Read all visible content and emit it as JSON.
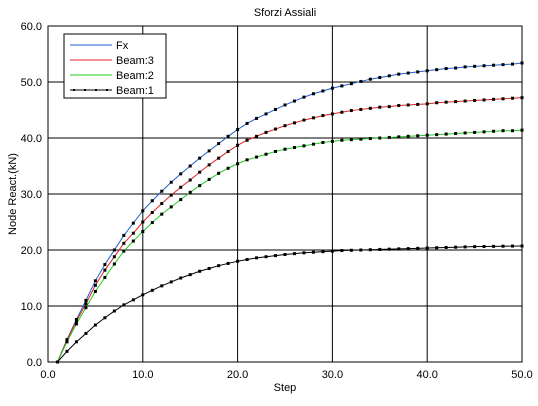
{
  "chart_data": {
    "type": "line",
    "title": "Sforzi Assiali",
    "xlabel": "Step",
    "ylabel": "Node React.(kN)",
    "xlim": [
      0,
      50
    ],
    "ylim": [
      0,
      60
    ],
    "x_ticks": [
      "0.0",
      "10.0",
      "20.0",
      "30.0",
      "40.0",
      "50.0"
    ],
    "y_ticks": [
      "0.0",
      "10.0",
      "20.0",
      "30.0",
      "40.0",
      "50.0",
      "60.0"
    ],
    "grid": true,
    "legend_position": "top-left",
    "x": [
      1,
      2,
      3,
      4,
      5,
      6,
      7,
      8,
      9,
      10,
      11,
      12,
      13,
      14,
      15,
      16,
      17,
      18,
      19,
      20,
      21,
      22,
      23,
      24,
      25,
      26,
      27,
      28,
      29,
      30,
      31,
      32,
      33,
      34,
      35,
      36,
      37,
      38,
      39,
      40,
      41,
      42,
      43,
      44,
      45,
      46,
      47,
      48,
      49,
      50
    ],
    "series": [
      {
        "name": "Fx",
        "color": "#1f5fd0",
        "values": [
          0.0,
          4.0,
          7.6,
          11.0,
          14.5,
          17.4,
          20.0,
          22.6,
          24.8,
          27.0,
          28.8,
          30.5,
          32.1,
          33.6,
          35.0,
          36.4,
          37.7,
          39.0,
          40.3,
          41.5,
          42.6,
          43.5,
          44.3,
          45.1,
          45.9,
          46.6,
          47.3,
          47.9,
          48.4,
          48.9,
          49.3,
          49.7,
          50.1,
          50.5,
          50.8,
          51.1,
          51.4,
          51.6,
          51.8,
          52.0,
          52.2,
          52.4,
          52.5,
          52.7,
          52.8,
          52.9,
          53.0,
          53.1,
          53.2,
          53.4
        ]
      },
      {
        "name": "Beam:3",
        "color": "#e02020",
        "values": [
          0.0,
          3.9,
          7.3,
          10.4,
          13.7,
          16.4,
          18.8,
          21.2,
          23.0,
          25.0,
          26.7,
          28.3,
          29.8,
          31.2,
          32.5,
          33.9,
          35.2,
          36.4,
          37.6,
          38.7,
          39.6,
          40.3,
          41.0,
          41.6,
          42.2,
          42.7,
          43.2,
          43.6,
          44.0,
          44.3,
          44.6,
          44.9,
          45.1,
          45.3,
          45.5,
          45.6,
          45.8,
          45.9,
          46.0,
          46.1,
          46.3,
          46.4,
          46.5,
          46.6,
          46.7,
          46.8,
          46.9,
          47.0,
          47.1,
          47.2
        ]
      },
      {
        "name": "Beam:2",
        "color": "#20cc20",
        "values": [
          0.0,
          3.6,
          6.8,
          9.7,
          12.6,
          15.1,
          17.5,
          19.8,
          21.6,
          23.3,
          24.9,
          26.4,
          27.7,
          29.0,
          30.3,
          31.5,
          32.6,
          33.7,
          34.6,
          35.4,
          36.1,
          36.6,
          37.1,
          37.6,
          38.0,
          38.3,
          38.6,
          38.9,
          39.2,
          39.4,
          39.6,
          39.7,
          39.8,
          39.9,
          40.0,
          40.1,
          40.2,
          40.3,
          40.4,
          40.5,
          40.6,
          40.7,
          40.8,
          40.9,
          41.0,
          41.1,
          41.2,
          41.3,
          41.3,
          41.4
        ]
      },
      {
        "name": "Beam:1",
        "color": "#000000",
        "values": [
          0.0,
          1.9,
          3.6,
          5.1,
          6.6,
          7.9,
          9.1,
          10.2,
          11.1,
          12.0,
          12.8,
          13.6,
          14.3,
          15.0,
          15.6,
          16.2,
          16.7,
          17.2,
          17.6,
          18.0,
          18.3,
          18.6,
          18.8,
          19.0,
          19.2,
          19.35,
          19.5,
          19.6,
          19.7,
          19.8,
          19.9,
          19.95,
          20.0,
          20.05,
          20.1,
          20.15,
          20.2,
          20.25,
          20.3,
          20.35,
          20.4,
          20.45,
          20.5,
          20.55,
          20.6,
          20.62,
          20.65,
          20.68,
          20.7,
          20.72
        ]
      }
    ]
  }
}
